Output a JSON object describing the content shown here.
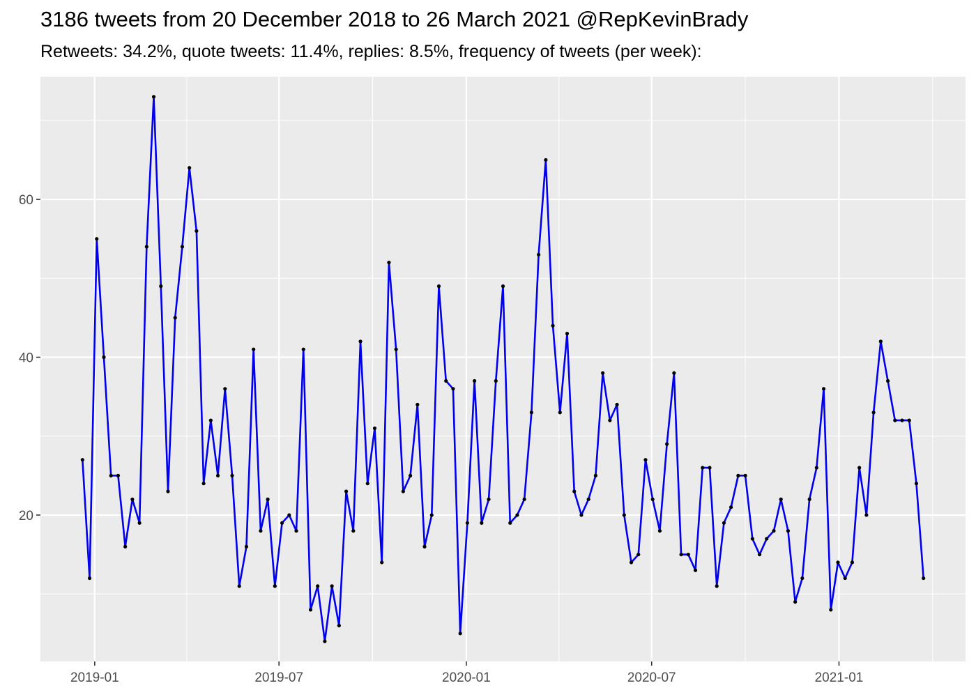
{
  "chart_data": {
    "type": "line",
    "title": "3186 tweets from 20 December 2018 to 26 March 2021 @RepKevinBrady",
    "subtitle": "Retweets: 34.2%, quote tweets: 11.4%, replies: 8.5%, frequency of tweets (per week):",
    "xlabel": "",
    "ylabel": "",
    "x_start": "2018-12-20",
    "x_step_days": 7,
    "x_ticks": [
      "2019-01-01",
      "2019-07-01",
      "2020-01-01",
      "2020-07-01",
      "2021-01-01"
    ],
    "x_tick_labels": [
      "2019-01",
      "2019-07",
      "2020-01",
      "2020-07",
      "2021-01"
    ],
    "y_ticks": [
      20,
      40,
      60
    ],
    "ylim": [
      1.45,
      75.55
    ],
    "grid": true,
    "colors": {
      "line": "#0000ee",
      "points": "#000000",
      "panel": "#ebebeb",
      "grid": "#ffffff"
    },
    "series": [
      {
        "values": [
          27,
          12,
          55,
          40,
          25,
          25,
          16,
          22,
          19,
          54,
          73,
          49,
          23,
          45,
          54,
          64,
          56,
          24,
          32,
          25,
          36,
          25,
          11,
          16,
          41,
          18,
          22,
          11,
          19,
          20,
          18,
          41,
          8,
          11,
          4,
          11,
          6,
          23,
          18,
          42,
          24,
          31,
          14,
          52,
          41,
          23,
          25,
          34,
          16,
          20,
          49,
          37,
          36,
          5,
          19,
          37,
          19,
          22,
          37,
          49,
          19,
          20,
          22,
          33,
          53,
          65,
          44,
          33,
          43,
          23,
          20,
          22,
          25,
          38,
          32,
          34,
          20,
          14,
          15,
          27,
          22,
          18,
          29,
          38,
          15,
          15,
          13,
          26,
          26,
          11,
          19,
          21,
          25,
          25,
          17,
          15,
          17,
          18,
          22,
          18,
          9,
          12,
          22,
          26,
          36,
          8,
          14,
          12,
          14,
          26,
          20,
          33,
          42,
          37,
          32,
          32,
          32,
          24,
          12
        ]
      }
    ]
  }
}
